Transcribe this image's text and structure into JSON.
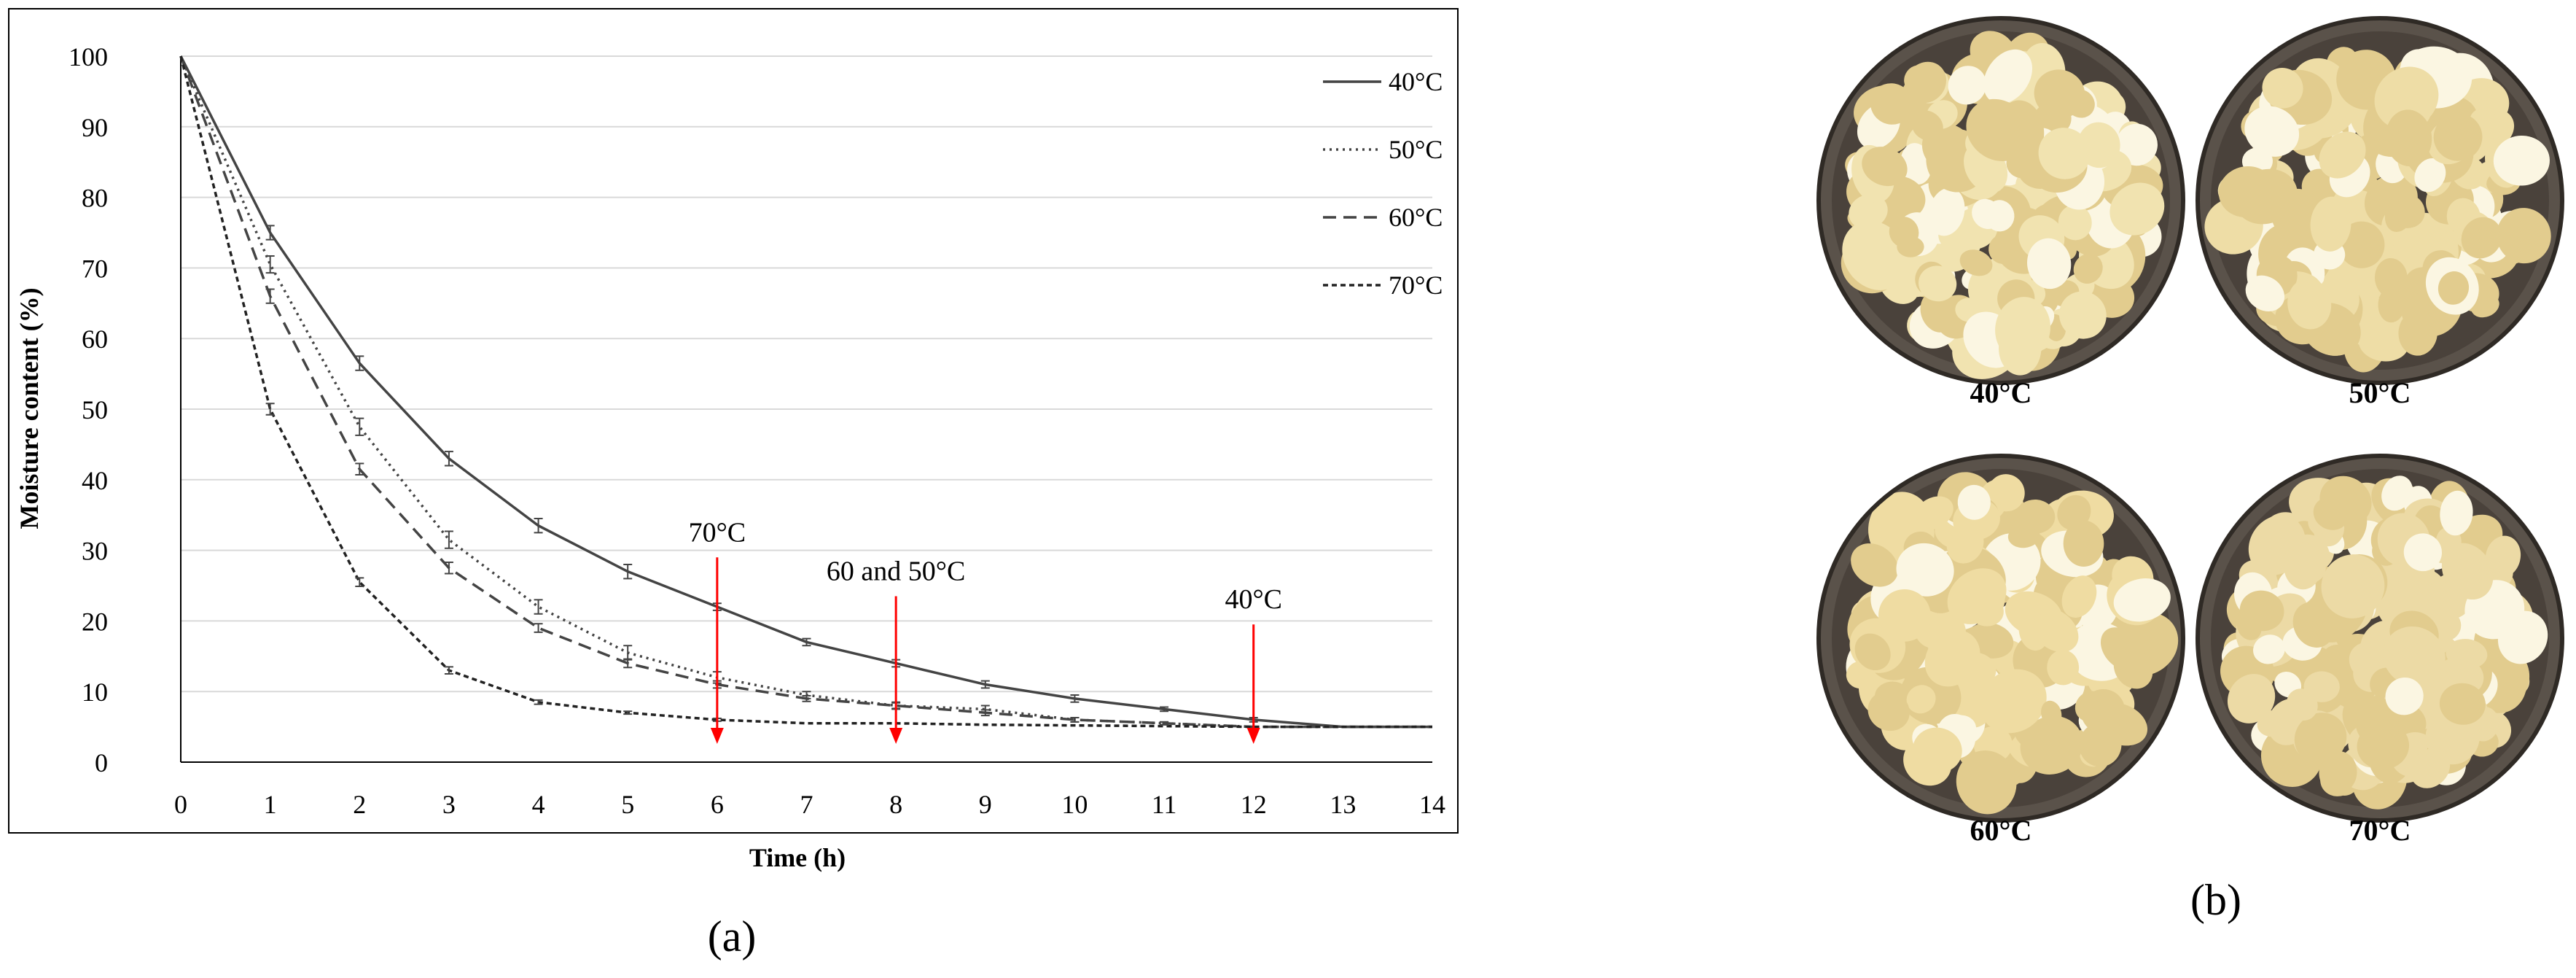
{
  "panel_a_label": "(a)",
  "panel_b_label": "(b)",
  "chart_data": {
    "type": "line",
    "title": "",
    "xlabel": "Time (h)",
    "ylabel": "Moisture content (%)",
    "xlim": [
      0,
      14
    ],
    "ylim": [
      0,
      100
    ],
    "x_ticks": [
      0,
      1,
      2,
      3,
      4,
      5,
      6,
      7,
      8,
      9,
      10,
      11,
      12,
      13,
      14
    ],
    "y_ticks": [
      0,
      10,
      20,
      30,
      40,
      50,
      60,
      70,
      80,
      90,
      100
    ],
    "grid": "horizontal",
    "legend": "top-right",
    "series": [
      {
        "name": "40°C",
        "style": "solid",
        "x": [
          0,
          1,
          2,
          3,
          4,
          5,
          6,
          7,
          8,
          9,
          10,
          11,
          12,
          13,
          14
        ],
        "y": [
          100,
          75,
          56.5,
          43,
          33.5,
          27,
          22,
          17,
          14,
          11,
          9,
          7.5,
          6,
          5,
          5
        ],
        "err": [
          0,
          1,
          1,
          1,
          1,
          1,
          0.5,
          0.5,
          0.5,
          0.5,
          0.5,
          0.3,
          0.3,
          0,
          0
        ]
      },
      {
        "name": "50°C",
        "style": "dotted",
        "x": [
          0,
          1,
          2,
          3,
          4,
          5,
          6,
          7,
          8,
          9,
          10,
          11,
          12,
          13,
          14
        ],
        "y": [
          100,
          70.5,
          47.5,
          31.5,
          22,
          15.5,
          12,
          9.5,
          8,
          7.5,
          6,
          5.5,
          5,
          5,
          5
        ],
        "err": [
          0,
          1.2,
          1.2,
          1.2,
          1,
          1,
          0.8,
          0.5,
          0.5,
          0.5,
          0.3,
          0.2,
          0,
          0,
          0
        ]
      },
      {
        "name": "60°C",
        "style": "dashed",
        "x": [
          0,
          1,
          2,
          3,
          4,
          5,
          6,
          7,
          8,
          9,
          10,
          11,
          12,
          13,
          14
        ],
        "y": [
          100,
          66,
          41.5,
          27.5,
          19,
          14,
          11,
          9,
          8,
          7,
          6,
          5.5,
          5,
          5,
          5
        ],
        "err": [
          0,
          1,
          0.8,
          0.8,
          0.6,
          0.6,
          0.5,
          0.4,
          0.4,
          0.4,
          0.3,
          0.2,
          0,
          0,
          0
        ]
      },
      {
        "name": "70°C",
        "style": "short-dash",
        "x": [
          0,
          1,
          2,
          3,
          4,
          5,
          6,
          7,
          8,
          9,
          10,
          11,
          12,
          13,
          14
        ],
        "y": [
          100,
          50,
          25.5,
          13,
          8.5,
          7,
          6,
          5.5,
          5.5,
          5.3,
          5.2,
          5.1,
          5,
          5,
          5
        ],
        "err": [
          0,
          0.8,
          0.6,
          0.5,
          0.3,
          0.2,
          0.2,
          0,
          0,
          0,
          0,
          0,
          0,
          0,
          0
        ]
      }
    ],
    "annotations": [
      {
        "text": "70°C",
        "x": 6,
        "y_start": 29,
        "y_end": 3
      },
      {
        "text": "60 and 50°C",
        "x": 8,
        "y_start": 23.5,
        "y_end": 3
      },
      {
        "text": "40°C",
        "x": 12,
        "y_start": 19.5,
        "y_end": 3
      }
    ],
    "colors": {
      "series": "#444444",
      "arrow": "#ff0000",
      "grid": "#d9d9d9",
      "axis": "#000000"
    }
  },
  "photos": [
    {
      "label": "40°C",
      "tone": "#f1e3b0"
    },
    {
      "label": "50°C",
      "tone": "#eedda6"
    },
    {
      "label": "60°C",
      "tone": "#efdca2"
    },
    {
      "label": "70°C",
      "tone": "#ecdaa5"
    }
  ]
}
